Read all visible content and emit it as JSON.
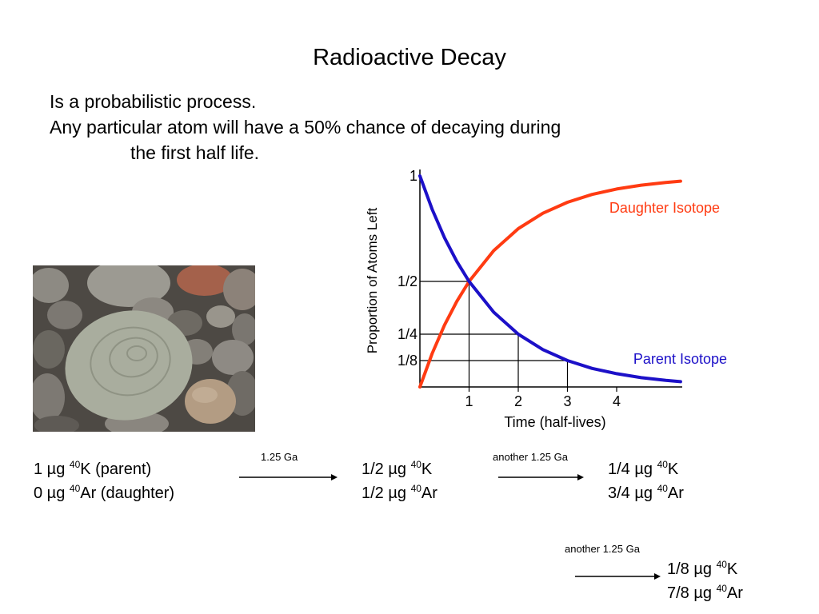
{
  "slide": {
    "title": "Radioactive Decay",
    "intro": {
      "line1": "Is a probabilistic process.",
      "line2": "Any particular atom will have a 50% chance of decaying during",
      "line3": "the first half life."
    }
  },
  "photo": {
    "name": "rounded-beach-stones-photo"
  },
  "chart_data": {
    "type": "line",
    "xlabel": "Time (half-lives)",
    "ylabel": "Proportion of Atoms Left",
    "x_ticks": [
      "1",
      "2",
      "3",
      "4"
    ],
    "y_ticks": [
      "1",
      "1/2",
      "1/4",
      "1/8"
    ],
    "xlim": [
      0,
      5.3
    ],
    "ylim": [
      0,
      1
    ],
    "series": [
      {
        "name": "Daughter Isotope",
        "color": "#ff3b12",
        "x": [
          0,
          0.25,
          0.5,
          0.75,
          1,
          1.5,
          2,
          2.5,
          3,
          3.5,
          4,
          4.5,
          5,
          5.3
        ],
        "y": [
          0,
          0.159,
          0.293,
          0.405,
          0.5,
          0.646,
          0.75,
          0.823,
          0.875,
          0.912,
          0.938,
          0.956,
          0.969,
          0.975
        ]
      },
      {
        "name": "Parent Isotope",
        "color": "#1c10c8",
        "x": [
          0,
          0.25,
          0.5,
          0.75,
          1,
          1.5,
          2,
          2.5,
          3,
          3.5,
          4,
          4.5,
          5,
          5.3
        ],
        "y": [
          1,
          0.841,
          0.707,
          0.595,
          0.5,
          0.354,
          0.25,
          0.177,
          0.125,
          0.088,
          0.063,
          0.044,
          0.031,
          0.025
        ]
      }
    ],
    "guides": [
      {
        "x": 1,
        "y": 0.5
      },
      {
        "x": 2,
        "y": 0.25
      },
      {
        "x": 3,
        "y": 0.125
      }
    ]
  },
  "decay": {
    "stage0": {
      "k_mass": "1 µg ",
      "k_sup": "40",
      "k_rest": "K (parent)",
      "ar_mass": "0 µg ",
      "ar_sup": "40",
      "ar_rest": "Ar (daughter)"
    },
    "arrow1": "1.25 Ga",
    "stage1": {
      "k_mass": "1/2 µg ",
      "k_sup": "40",
      "k_rest": "K",
      "ar_mass": "1/2 µg ",
      "ar_sup": "40",
      "ar_rest": "Ar"
    },
    "arrow2": "another 1.25 Ga",
    "stage2": {
      "k_mass": "1/4 µg ",
      "k_sup": "40",
      "k_rest": "K",
      "ar_mass": "3/4 µg ",
      "ar_sup": "40",
      "ar_rest": "Ar"
    },
    "arrow3": "another 1.25 Ga",
    "stage3": {
      "k_mass": "1/8 µg ",
      "k_sup": "40",
      "k_rest": "K",
      "ar_mass": "7/8 µg ",
      "ar_sup": "40",
      "ar_rest": "Ar"
    }
  }
}
